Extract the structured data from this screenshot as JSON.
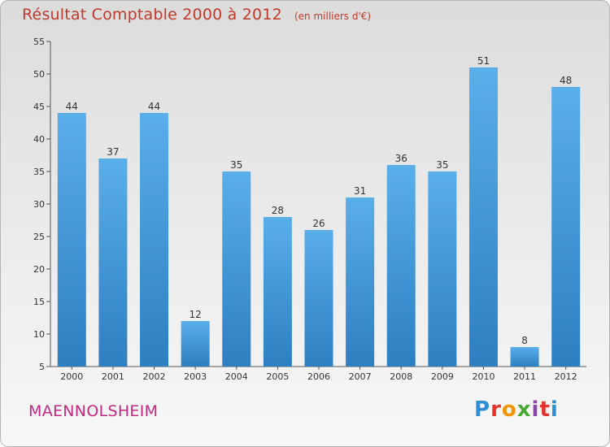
{
  "chart_data": {
    "type": "bar",
    "title": "Résultat Comptable 2000 à 2012",
    "unit_note": "(en milliers d'€)",
    "categories": [
      "2000",
      "2001",
      "2002",
      "2003",
      "2004",
      "2005",
      "2006",
      "2007",
      "2008",
      "2009",
      "2010",
      "2011",
      "2012"
    ],
    "values": [
      44,
      37,
      44,
      12,
      35,
      28,
      26,
      31,
      36,
      35,
      51,
      8,
      48
    ],
    "yticks": [
      5,
      10,
      15,
      20,
      25,
      30,
      35,
      40,
      45,
      50,
      55
    ],
    "ylim": [
      5,
      55
    ],
    "xlabel": "",
    "ylabel": "",
    "grid": false,
    "bar_color": "#4a9fe0"
  },
  "commune": "MAENNOLSHEIM",
  "logo": {
    "text": "Proxiti"
  }
}
